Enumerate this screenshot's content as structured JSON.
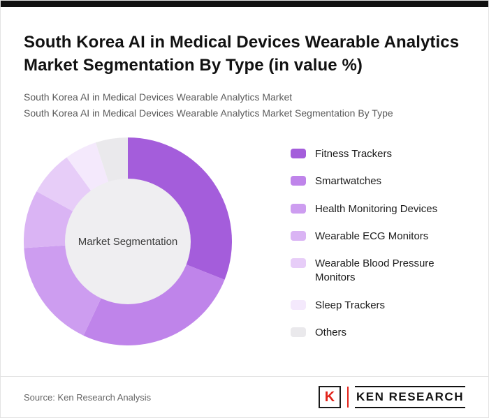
{
  "page": {
    "title": "South Korea AI in Medical Devices Wearable Analytics Market Segmentation By Type (in value %)",
    "subtitle_line1": "South Korea AI in Medical Devices Wearable Analytics Market",
    "subtitle_line2": "South Korea AI in Medical Devices Wearable Analytics Market Segmentation By Type"
  },
  "chart_data": {
    "type": "pie",
    "variant": "donut",
    "title": "South Korea AI in Medical Devices Wearable Analytics Market Segmentation By Type (in value %)",
    "center_label": "Market Segmentation",
    "center_color": "#efeef1",
    "start_angle_deg": 0,
    "direction": "clockwise",
    "legend_position": "right",
    "values_unit": "% of market value",
    "values_estimated_from_arcs": true,
    "segments": [
      {
        "label": "Fitness Trackers",
        "value": 31,
        "color": "#a45ddb"
      },
      {
        "label": "Smartwatches",
        "value": 26,
        "color": "#bf84ea"
      },
      {
        "label": "Health Monitoring Devices",
        "value": 17,
        "color": "#cd9df0"
      },
      {
        "label": "Wearable ECG Monitors",
        "value": 9,
        "color": "#dab4f4"
      },
      {
        "label": "Wearable Blood Pressure Monitors",
        "value": 7,
        "color": "#e7cdf8"
      },
      {
        "label": "Sleep Trackers",
        "value": 5,
        "color": "#f4e9fc"
      },
      {
        "label": "Others",
        "value": 5,
        "color": "#eae9ec"
      }
    ]
  },
  "footer": {
    "source": "Source: Ken Research Analysis",
    "logo": {
      "emblem_letter": "K",
      "brand": "KEN RESEARCH",
      "accent_color": "#e2231a"
    }
  }
}
